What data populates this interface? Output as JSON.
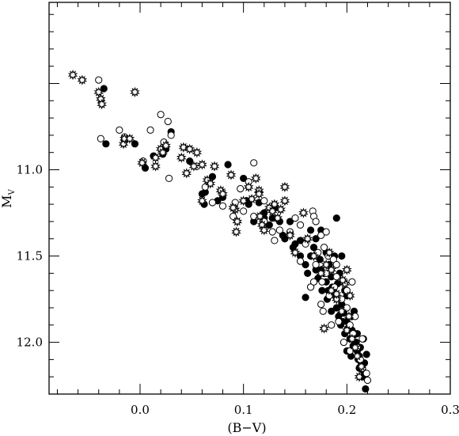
{
  "chart_data": {
    "type": "scatter",
    "title": "",
    "xlabel": "(B−V)",
    "ylabel_main": "M",
    "ylabel_sub": "V",
    "xlim": [
      -0.088,
      0.3
    ],
    "ylim": [
      12.3,
      10.03
    ],
    "y_inverted": true,
    "grid": false,
    "x_ticks": [
      0.0,
      0.1,
      0.2,
      0.3
    ],
    "x_tick_labels": [
      "0.0",
      "0.1",
      "0.2",
      "0.3"
    ],
    "y_ticks": [
      11.0,
      11.5,
      12.0
    ],
    "y_tick_labels": [
      "11.0",
      "11.5",
      "12.0"
    ],
    "marker_legend": {
      "filled": "filled circle",
      "open": "open circle",
      "star": "starburst"
    },
    "series": [
      {
        "marker": "filled",
        "points": [
          [
            -0.035,
            10.53
          ],
          [
            -0.033,
            10.85
          ],
          [
            -0.015,
            10.82
          ],
          [
            -0.005,
            10.85
          ],
          [
            0.005,
            10.99
          ],
          [
            0.013,
            10.92
          ],
          [
            0.022,
            10.91
          ],
          [
            0.025,
            10.88
          ],
          [
            0.03,
            10.78
          ],
          [
            0.048,
            10.95
          ],
          [
            0.06,
            11.14
          ],
          [
            0.063,
            11.13
          ],
          [
            0.062,
            11.2
          ],
          [
            0.07,
            11.04
          ],
          [
            0.075,
            11.18
          ],
          [
            0.08,
            11.16
          ],
          [
            0.085,
            10.97
          ],
          [
            0.1,
            11.05
          ],
          [
            0.11,
            11.3
          ],
          [
            0.105,
            11.2
          ],
          [
            0.115,
            11.19
          ],
          [
            0.12,
            11.25
          ],
          [
            0.12,
            11.28
          ],
          [
            0.125,
            11.32
          ],
          [
            0.13,
            11.22
          ],
          [
            0.135,
            11.3
          ],
          [
            0.14,
            11.4
          ],
          [
            0.15,
            11.43
          ],
          [
            0.155,
            11.41
          ],
          [
            0.16,
            11.55
          ],
          [
            0.162,
            11.6
          ],
          [
            0.165,
            11.5
          ],
          [
            0.168,
            11.45
          ],
          [
            0.17,
            11.58
          ],
          [
            0.172,
            11.63
          ],
          [
            0.174,
            11.52
          ],
          [
            0.176,
            11.7
          ],
          [
            0.178,
            11.6
          ],
          [
            0.18,
            11.65
          ],
          [
            0.181,
            11.75
          ],
          [
            0.183,
            11.55
          ],
          [
            0.185,
            11.62
          ],
          [
            0.186,
            11.68
          ],
          [
            0.188,
            11.72
          ],
          [
            0.19,
            11.8
          ],
          [
            0.191,
            11.66
          ],
          [
            0.192,
            11.85
          ],
          [
            0.194,
            11.9
          ],
          [
            0.195,
            11.78
          ],
          [
            0.197,
            11.83
          ],
          [
            0.198,
            11.95
          ],
          [
            0.2,
            11.88
          ],
          [
            0.201,
            11.92
          ],
          [
            0.203,
            11.98
          ],
          [
            0.205,
            11.85
          ],
          [
            0.206,
            12.02
          ],
          [
            0.208,
            11.95
          ],
          [
            0.209,
            12.0
          ],
          [
            0.21,
            12.05
          ],
          [
            0.211,
            12.1
          ],
          [
            0.212,
            12.08
          ],
          [
            0.214,
            12.13
          ],
          [
            0.215,
            12.16
          ],
          [
            0.216,
            12.2
          ],
          [
            0.217,
            12.12
          ],
          [
            0.218,
            12.27
          ],
          [
            0.212,
            12.15
          ],
          [
            0.205,
            11.93
          ],
          [
            0.188,
            11.5
          ],
          [
            0.19,
            11.28
          ],
          [
            0.175,
            11.35
          ],
          [
            0.165,
            11.68
          ],
          [
            0.16,
            11.74
          ],
          [
            0.17,
            11.4
          ],
          [
            0.145,
            11.3
          ],
          [
            0.138,
            11.38
          ],
          [
            0.195,
            11.5
          ],
          [
            0.18,
            11.48
          ],
          [
            0.2,
            11.73
          ],
          [
            0.185,
            11.82
          ],
          [
            0.175,
            11.58
          ],
          [
            0.182,
            11.7
          ],
          [
            0.193,
            11.6
          ],
          [
            0.198,
            11.7
          ],
          [
            0.207,
            11.82
          ],
          [
            0.213,
            12.03
          ],
          [
            0.219,
            12.07
          ],
          [
            0.204,
            12.08
          ],
          [
            0.196,
            11.88
          ],
          [
            0.155,
            11.5
          ],
          [
            0.148,
            11.45
          ],
          [
            0.128,
            11.28
          ],
          [
            0.103,
            11.18
          ],
          [
            0.165,
            11.35
          ],
          [
            0.21,
            11.95
          ],
          [
            0.216,
            11.98
          ],
          [
            0.2,
            12.05
          ]
        ]
      },
      {
        "marker": "open",
        "points": [
          [
            -0.04,
            10.48
          ],
          [
            -0.038,
            10.82
          ],
          [
            -0.02,
            10.77
          ],
          [
            -0.015,
            10.81
          ],
          [
            0.003,
            10.95
          ],
          [
            0.01,
            10.77
          ],
          [
            0.02,
            10.68
          ],
          [
            0.023,
            10.84
          ],
          [
            0.027,
            10.72
          ],
          [
            0.03,
            10.8
          ],
          [
            0.028,
            11.05
          ],
          [
            0.063,
            11.1
          ],
          [
            0.08,
            11.21
          ],
          [
            0.09,
            11.27
          ],
          [
            0.092,
            11.19
          ],
          [
            0.097,
            11.11
          ],
          [
            0.105,
            11.07
          ],
          [
            0.11,
            10.96
          ],
          [
            0.11,
            11.27
          ],
          [
            0.12,
            11.3
          ],
          [
            0.13,
            11.41
          ],
          [
            0.135,
            11.35
          ],
          [
            0.155,
            11.32
          ],
          [
            0.167,
            11.24
          ],
          [
            0.168,
            11.27
          ],
          [
            0.17,
            11.3
          ],
          [
            0.175,
            11.38
          ],
          [
            0.172,
            11.48
          ],
          [
            0.18,
            11.36
          ],
          [
            0.178,
            11.45
          ],
          [
            0.182,
            11.5
          ],
          [
            0.187,
            11.52
          ],
          [
            0.165,
            11.68
          ],
          [
            0.168,
            11.65
          ],
          [
            0.175,
            11.78
          ],
          [
            0.18,
            11.6
          ],
          [
            0.183,
            11.73
          ],
          [
            0.19,
            11.62
          ],
          [
            0.195,
            11.75
          ],
          [
            0.192,
            11.88
          ],
          [
            0.2,
            11.8
          ],
          [
            0.203,
            11.9
          ],
          [
            0.206,
            11.95
          ],
          [
            0.21,
            12.03
          ],
          [
            0.213,
            12.1
          ],
          [
            0.215,
            12.15
          ],
          [
            0.219,
            12.18
          ],
          [
            0.22,
            12.22
          ],
          [
            0.2,
            11.7
          ],
          [
            0.185,
            11.9
          ],
          [
            0.176,
            11.65
          ],
          [
            0.16,
            11.43
          ],
          [
            0.15,
            11.28
          ],
          [
            0.145,
            11.36
          ],
          [
            0.155,
            11.53
          ],
          [
            0.17,
            11.55
          ],
          [
            0.177,
            11.82
          ],
          [
            0.19,
            11.55
          ],
          [
            0.205,
            11.65
          ],
          [
            0.208,
            11.85
          ],
          [
            0.197,
            12.0
          ],
          [
            0.203,
            12.05
          ],
          [
            0.215,
            11.98
          ],
          [
            0.188,
            11.68
          ],
          [
            0.12,
            11.18
          ],
          [
            0.1,
            11.24
          ],
          [
            0.128,
            11.36
          ],
          [
            0.07,
            11.19
          ],
          [
            0.055,
            10.98
          ]
        ]
      },
      {
        "marker": "star",
        "points": [
          [
            -0.065,
            10.45
          ],
          [
            -0.056,
            10.48
          ],
          [
            -0.04,
            10.55
          ],
          [
            -0.038,
            10.59
          ],
          [
            -0.037,
            10.62
          ],
          [
            -0.016,
            10.85
          ],
          [
            -0.015,
            10.82
          ],
          [
            -0.01,
            10.82
          ],
          [
            -0.005,
            10.55
          ],
          [
            0.015,
            10.93
          ],
          [
            0.02,
            10.88
          ],
          [
            0.022,
            10.9
          ],
          [
            0.025,
            10.86
          ],
          [
            0.04,
            10.93
          ],
          [
            0.042,
            10.87
          ],
          [
            0.048,
            10.88
          ],
          [
            0.052,
            10.98
          ],
          [
            0.055,
            10.9
          ],
          [
            0.06,
            10.97
          ],
          [
            0.065,
            11.06
          ],
          [
            0.068,
            11.08
          ],
          [
            0.072,
            10.98
          ],
          [
            0.078,
            11.12
          ],
          [
            0.088,
            11.03
          ],
          [
            0.092,
            11.23
          ],
          [
            0.094,
            11.3
          ],
          [
            0.093,
            11.36
          ],
          [
            0.1,
            11.18
          ],
          [
            0.105,
            11.1
          ],
          [
            0.108,
            11.17
          ],
          [
            0.112,
            11.05
          ],
          [
            0.115,
            11.12
          ],
          [
            0.118,
            11.32
          ],
          [
            0.12,
            11.35
          ],
          [
            0.125,
            11.22
          ],
          [
            0.128,
            11.24
          ],
          [
            0.13,
            11.2
          ],
          [
            0.133,
            11.28
          ],
          [
            0.136,
            11.23
          ],
          [
            0.14,
            11.1
          ],
          [
            0.145,
            11.38
          ],
          [
            0.15,
            11.48
          ],
          [
            0.158,
            11.25
          ],
          [
            0.162,
            11.4
          ],
          [
            0.168,
            11.5
          ],
          [
            0.175,
            11.6
          ],
          [
            0.18,
            11.55
          ],
          [
            0.183,
            11.48
          ],
          [
            0.185,
            11.7
          ],
          [
            0.19,
            11.75
          ],
          [
            0.195,
            11.82
          ],
          [
            0.198,
            11.66
          ],
          [
            0.2,
            11.93
          ],
          [
            0.202,
            11.85
          ],
          [
            0.205,
            11.98
          ],
          [
            0.208,
            12.03
          ],
          [
            0.21,
            12.08
          ],
          [
            0.212,
            12.2
          ],
          [
            0.214,
            12.14
          ],
          [
            0.196,
            11.64
          ],
          [
            0.2,
            11.58
          ],
          [
            0.178,
            11.92
          ],
          [
            0.185,
            11.58
          ],
          [
            0.19,
            11.72
          ],
          [
            0.203,
            11.73
          ],
          [
            0.14,
            11.18
          ],
          [
            0.116,
            11.27
          ],
          [
            0.115,
            11.14
          ],
          [
            0.08,
            11.14
          ],
          [
            0.06,
            11.18
          ],
          [
            0.015,
            10.98
          ],
          [
            0.002,
            10.96
          ],
          [
            0.045,
            11.02
          ],
          [
            0.09,
            11.22
          ]
        ]
      }
    ]
  }
}
